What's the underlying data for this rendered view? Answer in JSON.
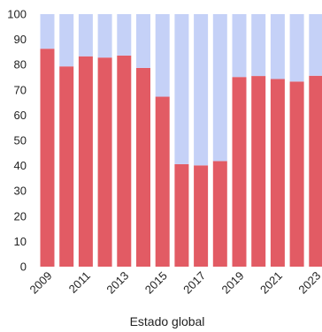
{
  "chart_data": {
    "type": "bar",
    "stacked": true,
    "title": "",
    "xlabel": "Estado global",
    "ylabel": "",
    "ylim": [
      0,
      100
    ],
    "yticks": [
      0,
      10,
      20,
      30,
      40,
      50,
      60,
      70,
      80,
      90,
      100
    ],
    "categories": [
      "2009",
      "2010",
      "2011",
      "2012",
      "2013",
      "2014",
      "2015",
      "2016",
      "2017",
      "2018",
      "2019",
      "2020",
      "2021",
      "2022",
      "2023"
    ],
    "visible_x_labels": [
      "2009",
      "2011",
      "2013",
      "2015",
      "2017",
      "2019",
      "2021",
      "2023"
    ],
    "series": [
      {
        "values": [
          86.3,
          79.3,
          83.3,
          82.8,
          83.6,
          78.7,
          67.3,
          40.6,
          40.1,
          41.8,
          75.1,
          75.5,
          74.3,
          73.3,
          75.6
        ],
        "color": "#e25b64"
      },
      {
        "values": [
          13.7,
          20.7,
          16.7,
          17.2,
          16.4,
          21.3,
          32.7,
          59.4,
          59.9,
          58.2,
          24.9,
          24.5,
          25.7,
          26.7,
          24.4
        ],
        "color": "#c5d1f7"
      }
    ],
    "grid": false,
    "legend": "none"
  }
}
